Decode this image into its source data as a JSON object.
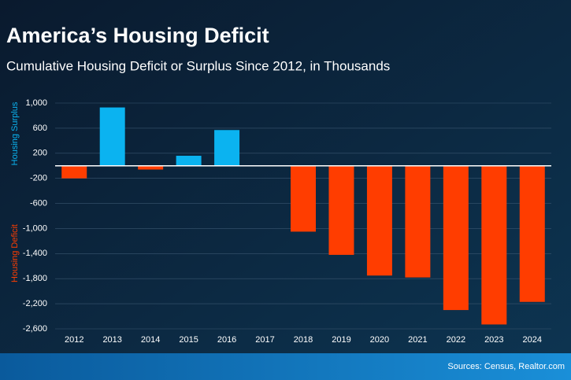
{
  "chart_data": {
    "type": "bar",
    "title": "America’s Housing Deficit",
    "subtitle": "Cumulative Housing Deficit or Surplus Since 2012, in Thousands",
    "surplus_label": "Housing Surplus",
    "deficit_label": "Housing Deficit",
    "source": "Sources: Census, Realtor.com",
    "categories": [
      "2012",
      "2013",
      "2014",
      "2015",
      "2016",
      "2017",
      "2018",
      "2019",
      "2020",
      "2021",
      "2022",
      "2023",
      "2024"
    ],
    "values": [
      -200,
      930,
      -60,
      160,
      570,
      0,
      -1050,
      -1420,
      -1750,
      -1780,
      -2300,
      -2530,
      -2170
    ],
    "positive_color": "#0bb3f0",
    "negative_color": "#ff3d00",
    "ylim": [
      -2600,
      1000
    ],
    "yticks": [
      {
        "value": 1000,
        "label": "1,000"
      },
      600,
      200,
      -200,
      -600,
      {
        "value": -1000,
        "label": "-1,000"
      },
      {
        "value": -1400,
        "label": "-1,400"
      },
      {
        "value": -1800,
        "label": "-1,800"
      },
      {
        "value": -2200,
        "label": "-2,200"
      },
      {
        "value": -2600,
        "label": "-2,600"
      }
    ],
    "grid": true
  }
}
